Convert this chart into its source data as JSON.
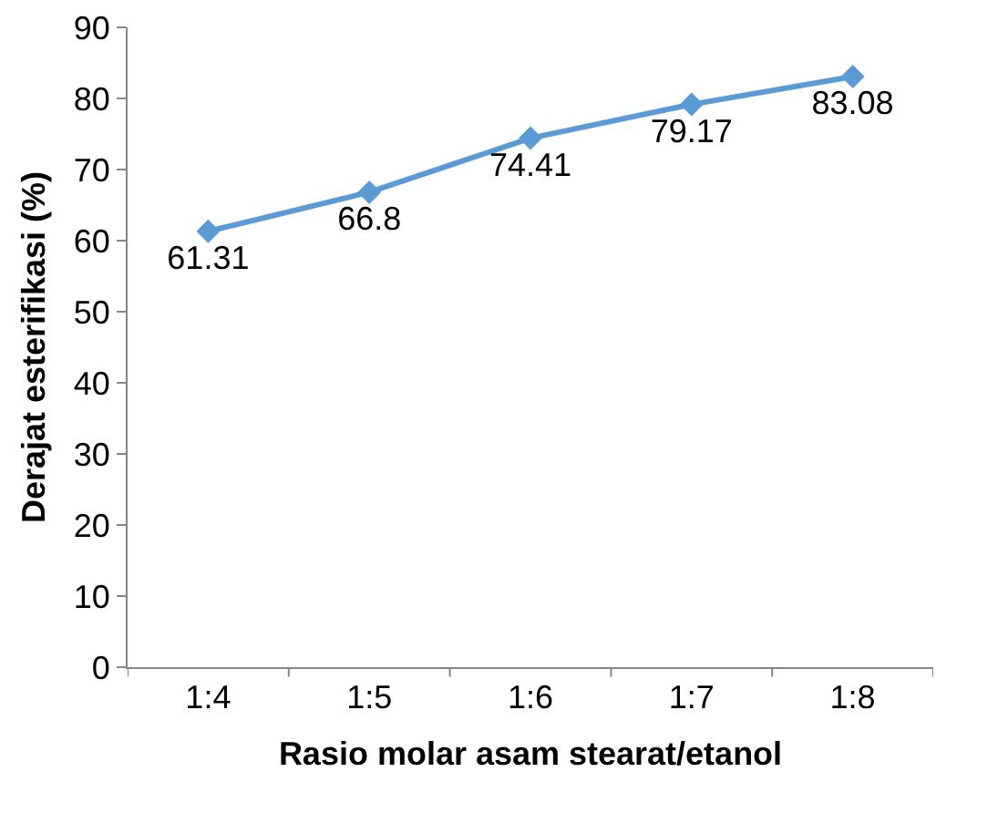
{
  "chart_data": {
    "type": "line",
    "xlabel": "Rasio molar asam stearat/etanol",
    "ylabel": "Derajat esterifikasi (%)",
    "categories": [
      "1:4",
      "1:5",
      "1:6",
      "1:7",
      "1:8"
    ],
    "series": [
      {
        "color": "#5b9bd5",
        "values": [
          61.31,
          66.8,
          74.41,
          79.17,
          83.08
        ]
      }
    ],
    "ylim": [
      0,
      90
    ],
    "yticks": [
      0,
      10,
      20,
      30,
      40,
      50,
      60,
      70,
      80,
      90
    ],
    "grid": false,
    "marker": "diamond",
    "line_style": "solid",
    "data_labels": true
  }
}
